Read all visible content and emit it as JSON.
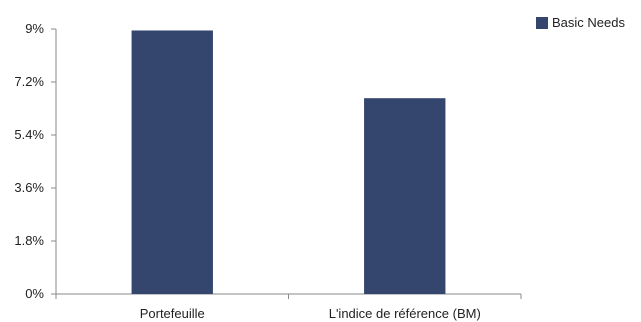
{
  "chart_data": {
    "type": "bar",
    "categories": [
      "Portefeuille",
      "L'indice de référence (BM)"
    ],
    "series": [
      {
        "name": "Basic Needs",
        "values": [
          8.95,
          6.65
        ],
        "color": "#34466e"
      }
    ],
    "y_ticks": [
      "0%",
      "1.8%",
      "3.6%",
      "5.4%",
      "7.2%",
      "9%"
    ],
    "y_tick_values": [
      0,
      1.8,
      3.6,
      5.4,
      7.2,
      9
    ],
    "ylim": [
      0,
      9
    ],
    "grid": false,
    "legend_position": "top-right"
  }
}
